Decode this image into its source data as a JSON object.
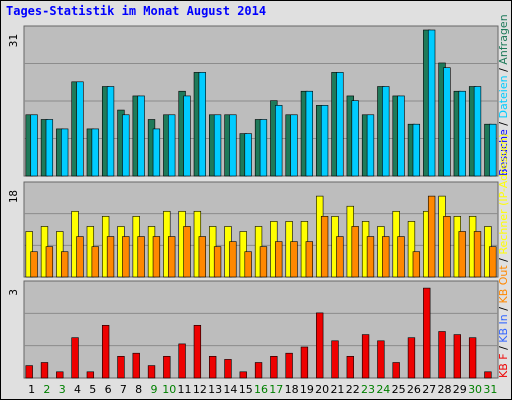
{
  "page": {
    "title": "Tages-Statistik im Monat August 2014"
  },
  "colors": {
    "page_bg": "#e0e0e0",
    "plot_bg": "#bdbdbd",
    "grid": "#8c8c8c",
    "title": "#0000ff",
    "tick_weekday": "#000000",
    "tick_weekend": "#008000",
    "anfragen": "#1e7a5a",
    "dateien": "#00ccff",
    "besuche": "#0000ff",
    "ip": "#b0b000",
    "rechner": "#ffff00",
    "kb_out": "#ff8800",
    "kb_in": "#3366ff",
    "kb_f": "#ee0000",
    "side_sep": "#000000"
  },
  "chart_data": [
    {
      "id": "top",
      "type": "bar",
      "ymax_label": "31",
      "ylim": [
        0,
        31
      ],
      "categories": [
        "1",
        "2",
        "3",
        "4",
        "5",
        "6",
        "7",
        "8",
        "9",
        "10",
        "11",
        "12",
        "13",
        "14",
        "15",
        "16",
        "17",
        "18",
        "19",
        "20",
        "21",
        "22",
        "23",
        "24",
        "25",
        "26",
        "27",
        "28",
        "29",
        "30",
        "31"
      ],
      "series": [
        {
          "name": "Anfragen",
          "color_key": "anfragen",
          "values": [
            13,
            12,
            10,
            20,
            10,
            19,
            14,
            17,
            12,
            13,
            18,
            22,
            13,
            13,
            9,
            12,
            16,
            13,
            18,
            15,
            22,
            17,
            13,
            19,
            17,
            11,
            31,
            24,
            18,
            19,
            11
          ]
        },
        {
          "name": "Dateien",
          "color_key": "dateien",
          "values": [
            13,
            12,
            10,
            20,
            10,
            19,
            13,
            17,
            10,
            13,
            17,
            22,
            13,
            13,
            9,
            12,
            15,
            13,
            18,
            15,
            22,
            16,
            13,
            19,
            17,
            11,
            31,
            23,
            18,
            19,
            11
          ]
        }
      ],
      "legend_side": [
        "Anfragen",
        "Dateien",
        "Besuche"
      ]
    },
    {
      "id": "middle",
      "type": "bar",
      "ymax_label": "18",
      "ylim": [
        0,
        18
      ],
      "categories": [
        "1",
        "2",
        "3",
        "4",
        "5",
        "6",
        "7",
        "8",
        "9",
        "10",
        "11",
        "12",
        "13",
        "14",
        "15",
        "16",
        "17",
        "18",
        "19",
        "20",
        "21",
        "22",
        "23",
        "24",
        "25",
        "26",
        "27",
        "28",
        "29",
        "30",
        "31"
      ],
      "series": [
        {
          "name": "Rechner (IP-Adressen)",
          "color_key": "rechner",
          "values": [
            9,
            10,
            9,
            13,
            10,
            12,
            10,
            12,
            10,
            13,
            13,
            13,
            10,
            10,
            9,
            10,
            11,
            11,
            11,
            16,
            12,
            14,
            11,
            10,
            13,
            11,
            13,
            16,
            12,
            12,
            10
          ]
        },
        {
          "name": "KB Out",
          "color_key": "kb_out",
          "values": [
            5,
            6,
            5,
            8,
            6,
            8,
            8,
            8,
            8,
            8,
            10,
            8,
            6,
            7,
            5,
            6,
            7,
            7,
            7,
            12,
            8,
            10,
            8,
            8,
            8,
            5,
            16,
            12,
            9,
            9,
            6
          ]
        }
      ],
      "legend_side": [
        "Rechner (IP-Adressen)",
        "KB Out"
      ]
    },
    {
      "id": "bottom",
      "type": "bar",
      "ymax_label": "3",
      "ylim": [
        0,
        3
      ],
      "categories": [
        "1",
        "2",
        "3",
        "4",
        "5",
        "6",
        "7",
        "8",
        "9",
        "10",
        "11",
        "12",
        "13",
        "14",
        "15",
        "16",
        "17",
        "18",
        "19",
        "20",
        "21",
        "22",
        "23",
        "24",
        "25",
        "26",
        "27",
        "28",
        "29",
        "30",
        "31"
      ],
      "series": [
        {
          "name": "KB F",
          "color_key": "kb_f",
          "values": [
            0.4,
            0.5,
            0.2,
            1.3,
            0.2,
            1.7,
            0.7,
            0.8,
            0.4,
            0.7,
            1.1,
            1.7,
            0.7,
            0.6,
            0.2,
            0.5,
            0.7,
            0.8,
            1.0,
            2.1,
            1.2,
            0.7,
            1.4,
            1.2,
            0.5,
            1.3,
            2.9,
            1.5,
            1.4,
            1.3,
            0.2
          ]
        }
      ],
      "legend_side": [
        "KB F",
        "KB In"
      ]
    }
  ],
  "x_axis": {
    "ticks": [
      "1",
      "2",
      "3",
      "4",
      "5",
      "6",
      "7",
      "8",
      "9",
      "10",
      "11",
      "12",
      "13",
      "14",
      "15",
      "16",
      "17",
      "18",
      "19",
      "20",
      "21",
      "22",
      "23",
      "24",
      "25",
      "26",
      "27",
      "28",
      "29",
      "30",
      "31"
    ],
    "weekend_days": [
      "2",
      "3",
      "9",
      "10",
      "16",
      "17",
      "23",
      "24",
      "30",
      "31"
    ]
  }
}
